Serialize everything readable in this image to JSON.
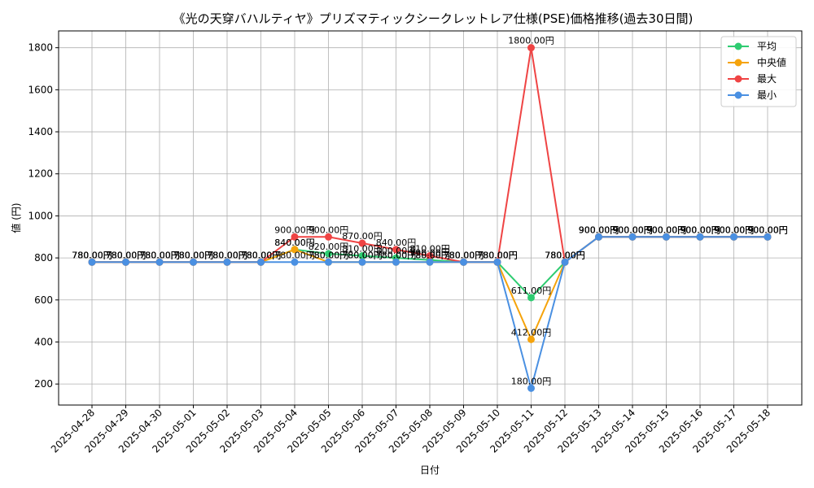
{
  "chart_data": {
    "type": "line",
    "title": "《光の天穿バハルティヤ》プリズマティックシークレットレア仕様(PSE)価格推移(過去30日間)",
    "xlabel": "日付",
    "ylabel": "値 (円)",
    "ylim": [
      100,
      1880
    ],
    "yticks": [
      200,
      400,
      600,
      800,
      1000,
      1200,
      1400,
      1600,
      1800
    ],
    "grid": true,
    "legend_position": "top-right",
    "label_suffix": "円",
    "categories": [
      "2025-04-28",
      "2025-04-29",
      "2025-04-30",
      "2025-05-01",
      "2025-05-02",
      "2025-05-03",
      "2025-05-04",
      "2025-05-05",
      "2025-05-06",
      "2025-05-07",
      "2025-05-08",
      "2025-05-09",
      "2025-05-10",
      "2025-05-11",
      "2025-05-12",
      "2025-05-13",
      "2025-05-14",
      "2025-05-15",
      "2025-05-16",
      "2025-05-17",
      "2025-05-18"
    ],
    "series": [
      {
        "name": "平均",
        "color": "#2ecc71",
        "values": [
          780,
          780,
          780,
          780,
          780,
          780,
          840,
          820,
          810,
          800,
          790,
          780,
          780,
          611,
          780,
          900,
          900,
          900,
          900,
          900,
          900
        ]
      },
      {
        "name": "中央値",
        "color": "#f5a30b",
        "values": [
          780,
          780,
          780,
          780,
          780,
          780,
          840,
          780,
          780,
          780,
          780,
          780,
          780,
          412,
          780,
          900,
          900,
          900,
          900,
          900,
          900
        ]
      },
      {
        "name": "最大",
        "color": "#ef4444",
        "values": [
          780,
          780,
          780,
          780,
          780,
          780,
          900,
          900,
          870,
          840,
          810,
          780,
          780,
          1800,
          780,
          900,
          900,
          900,
          900,
          900,
          900
        ]
      },
      {
        "name": "最小",
        "color": "#4a90e2",
        "values": [
          780,
          780,
          780,
          780,
          780,
          780,
          780,
          780,
          780,
          780,
          780,
          780,
          780,
          180,
          780,
          900,
          900,
          900,
          900,
          900,
          900
        ]
      }
    ]
  }
}
